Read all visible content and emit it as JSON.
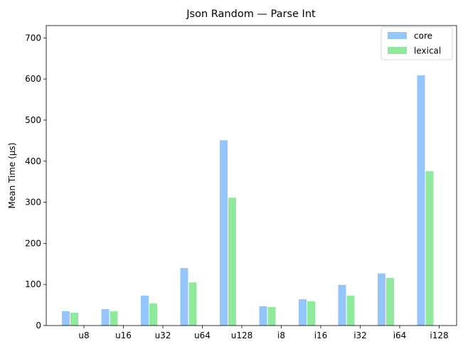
{
  "chart_data": {
    "type": "bar",
    "title": "Json Random — Parse Int",
    "xlabel": "",
    "ylabel": "Mean Time (µs)",
    "categories": [
      "u8",
      "u16",
      "u32",
      "u64",
      "u128",
      "i8",
      "i16",
      "i32",
      "i64",
      "i128"
    ],
    "series": [
      {
        "name": "core",
        "color": "#94c5fc",
        "values": [
          35,
          40,
          73,
          140,
          451,
          47,
          64,
          99,
          127,
          609
        ]
      },
      {
        "name": "lexical",
        "color": "#90ea9d",
        "values": [
          31,
          35,
          54,
          105,
          311,
          45,
          59,
          73,
          116,
          376
        ]
      }
    ],
    "ylim": [
      0,
      730
    ],
    "yticks": [
      0,
      100,
      200,
      300,
      400,
      500,
      600,
      700
    ],
    "grid": false,
    "legend_position": "top-right"
  }
}
